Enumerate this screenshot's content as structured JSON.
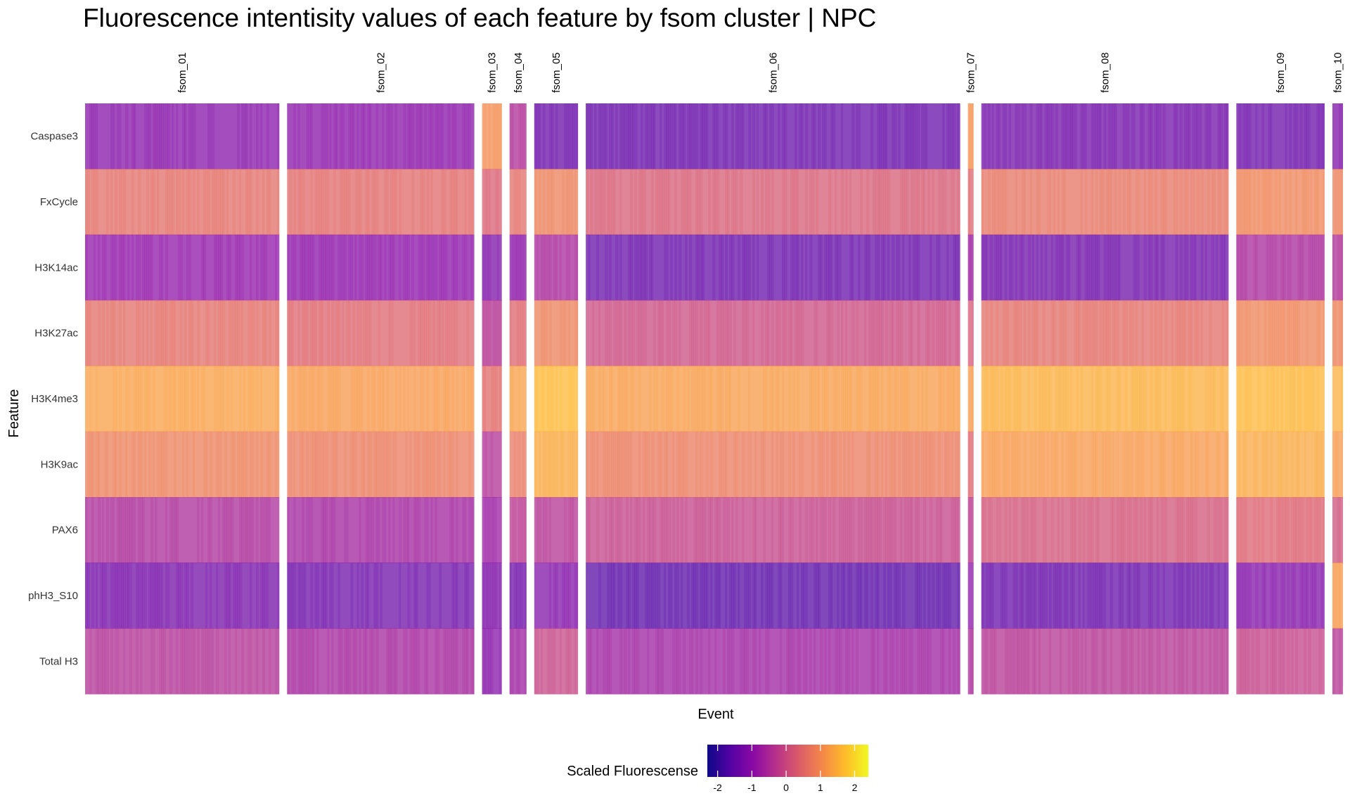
{
  "chart_data": {
    "type": "heatmap",
    "title": "Fluorescence intentisity values of each feature by fsom cluster | NPC",
    "xlabel": "Event",
    "ylabel": "Feature",
    "features": [
      "Caspase3",
      "FxCycle",
      "H3K14ac",
      "H3K27ac",
      "H3K4me3",
      "H3K9ac",
      "PAX6",
      "phH3_S10",
      "Total H3"
    ],
    "clusters": [
      {
        "name": "fsom_01",
        "events": 275,
        "values": [
          -1.1,
          0.55,
          -0.95,
          0.55,
          1.3,
          0.85,
          -0.55,
          -1.3,
          -0.45
        ]
      },
      {
        "name": "fsom_02",
        "events": 265,
        "values": [
          -1.05,
          0.5,
          -1.0,
          0.4,
          1.2,
          0.75,
          -0.7,
          -1.4,
          -0.65
        ]
      },
      {
        "name": "fsom_03",
        "events": 28,
        "values": [
          1.05,
          0.3,
          -1.2,
          -0.4,
          0.5,
          -0.45,
          -0.8,
          -1.2,
          -1.1
        ]
      },
      {
        "name": "fsom_04",
        "events": 24,
        "values": [
          -0.5,
          0.55,
          -1.05,
          0.4,
          1.3,
          0.7,
          -0.3,
          -1.4,
          -0.75
        ]
      },
      {
        "name": "fsom_05",
        "events": 62,
        "values": [
          -1.45,
          0.85,
          -0.6,
          0.85,
          1.65,
          1.4,
          -0.4,
          -1.15,
          -0.1
        ]
      },
      {
        "name": "fsom_06",
        "events": 530,
        "values": [
          -1.5,
          0.25,
          -1.5,
          0.0,
          1.25,
          0.75,
          -0.15,
          -1.65,
          -0.75
        ]
      },
      {
        "name": "fsom_07",
        "events": 8,
        "values": [
          1.1,
          0.4,
          -0.8,
          0.2,
          1.2,
          0.4,
          -0.3,
          -1.0,
          -0.6
        ]
      },
      {
        "name": "fsom_08",
        "events": 350,
        "values": [
          -1.35,
          0.65,
          -1.4,
          0.55,
          1.5,
          1.2,
          0.15,
          -1.5,
          -0.4
        ]
      },
      {
        "name": "fsom_09",
        "events": 125,
        "values": [
          -1.45,
          0.9,
          -0.6,
          0.9,
          1.6,
          1.4,
          0.35,
          -1.15,
          -0.15
        ]
      },
      {
        "name": "fsom_10",
        "events": 15,
        "values": [
          -1.2,
          0.85,
          -0.5,
          0.85,
          1.5,
          1.2,
          0.1,
          1.2,
          -0.4
        ]
      }
    ],
    "legend": {
      "title": "Scaled Fluorescense",
      "position": "bottom",
      "range": [
        -2.3,
        2.4
      ],
      "ticks": [
        "-2",
        "-1",
        "0",
        "1",
        "2"
      ],
      "colormap": [
        "#0d0887",
        "#5302a3",
        "#8b0aa5",
        "#b83289",
        "#db5c68",
        "#f48849",
        "#febc2a",
        "#f0f921"
      ]
    },
    "grid": false
  }
}
